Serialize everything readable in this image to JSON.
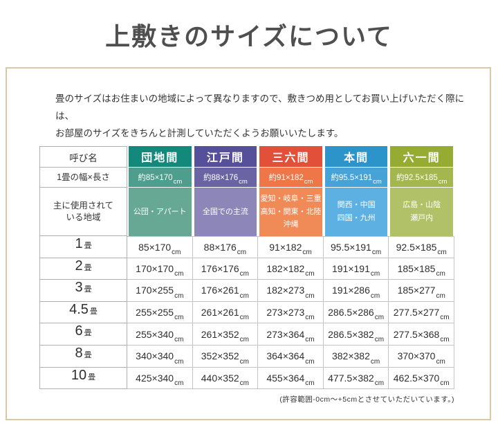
{
  "page": {
    "title": "上敷きのサイズについて"
  },
  "intro": {
    "line1": "畳のサイズはお住まいの地域によって異なりますので、敷きつめ用としてお買い上げいただく際には、",
    "line2": "お部屋のサイズをきちんと計測していただくようお願いいたします。"
  },
  "table": {
    "corner_label": "呼び名",
    "width_row_label": "1畳の幅×長さ",
    "region_row_label_line1": "主に使用されて",
    "region_row_label_line2": "いる地域",
    "unit": "cm",
    "columns": [
      {
        "name": "団地間",
        "one_tatami": "約85×170",
        "region_line1": "公団・アパート",
        "region_line2": "",
        "region_line3": "",
        "color_header": "#12897b",
        "color_mid": "#4d9e8d",
        "color_light": "#66a893"
      },
      {
        "name": "江戸間",
        "one_tatami": "約88×176",
        "region_line1": "全国での主流",
        "region_line2": "",
        "region_line3": "",
        "color_header": "#56509a",
        "color_mid": "#6b64a4",
        "color_light": "#8d86b8"
      },
      {
        "name": "三六間",
        "one_tatami": "約91×182",
        "region_line1": "愛知・岐阜・三重",
        "region_line2": "高知・関東・北陸",
        "region_line3": "沖縄",
        "color_header": "#e2503a",
        "color_mid": "#ee7647",
        "color_light": "#f08a56"
      },
      {
        "name": "本間",
        "one_tatami": "約95.5×191",
        "region_line1": "関西・中国",
        "region_line2": "四国・九州",
        "region_line3": "",
        "color_header": "#2d94c9",
        "color_mid": "#46a3d7",
        "color_light": "#5cb0e2"
      },
      {
        "name": "六一間",
        "one_tatami": "約92.5×185",
        "region_line1": "広島・山陰",
        "region_line2": "瀬戸内",
        "region_line3": "",
        "color_header": "#95ab31",
        "color_mid": "#a4b74f",
        "color_light": "#b0c168"
      }
    ],
    "size_rows": [
      {
        "num": "1",
        "unit_label": "畳",
        "values": [
          "85×170",
          "88×176",
          "91×182",
          "95.5×191",
          "92.5×185"
        ]
      },
      {
        "num": "2",
        "unit_label": "畳",
        "values": [
          "170×170",
          "176×176",
          "182×182",
          "191×191",
          "185×185"
        ]
      },
      {
        "num": "3",
        "unit_label": "畳",
        "values": [
          "170×255",
          "176×261",
          "182×273",
          "191×286",
          "185×277"
        ]
      },
      {
        "num": "4.5",
        "unit_label": "畳",
        "values": [
          "255×255",
          "261×261",
          "273×273",
          "286.5×286",
          "277.5×277"
        ]
      },
      {
        "num": "6",
        "unit_label": "畳",
        "values": [
          "255×340",
          "261×352",
          "273×364",
          "286.5×382",
          "277.5×368"
        ]
      },
      {
        "num": "8",
        "unit_label": "畳",
        "values": [
          "340×340",
          "352×352",
          "364×364",
          "382×382",
          "370×370"
        ]
      },
      {
        "num": "10",
        "unit_label": "畳",
        "values": [
          "425×340",
          "440×352",
          "455×364",
          "477.5×382",
          "462.5×370"
        ]
      }
    ]
  },
  "footnote": "(許容範囲-0cm〜+5cmとさせていただいています。)",
  "colors": {
    "box_border": "#dcc7a4",
    "grid_line": "#b0b0b0",
    "title_text": "#4f4f4f",
    "body_text": "#333333"
  },
  "chart_data": {
    "type": "table",
    "title": "上敷きのサイズについて",
    "columns": [
      "呼び名",
      "団地間",
      "江戸間",
      "三六間",
      "本間",
      "六一間"
    ],
    "rows": [
      [
        "1畳の幅×長さ",
        "約85×170cm",
        "約88×176cm",
        "約91×182cm",
        "約95.5×191cm",
        "約92.5×185cm"
      ],
      [
        "主に使用されている地域",
        "公団・アパート",
        "全国での主流",
        "愛知・岐阜・三重・高知・関東・北陸・沖縄",
        "関西・中国・四国・九州",
        "広島・山陰・瀬戸内"
      ],
      [
        "1畳",
        "85×170cm",
        "88×176cm",
        "91×182cm",
        "95.5×191cm",
        "92.5×185cm"
      ],
      [
        "2畳",
        "170×170cm",
        "176×176cm",
        "182×182cm",
        "191×191cm",
        "185×185cm"
      ],
      [
        "3畳",
        "170×255cm",
        "176×261cm",
        "182×273cm",
        "191×286cm",
        "185×277cm"
      ],
      [
        "4.5畳",
        "255×255cm",
        "261×261cm",
        "273×273cm",
        "286.5×286cm",
        "277.5×277cm"
      ],
      [
        "6畳",
        "255×340cm",
        "261×352cm",
        "273×364cm",
        "286.5×382cm",
        "277.5×368cm"
      ],
      [
        "8畳",
        "340×340cm",
        "352×352cm",
        "364×364cm",
        "382×382cm",
        "370×370cm"
      ],
      [
        "10畳",
        "425×340cm",
        "440×352cm",
        "455×364cm",
        "477.5×382cm",
        "462.5×370cm"
      ]
    ]
  }
}
